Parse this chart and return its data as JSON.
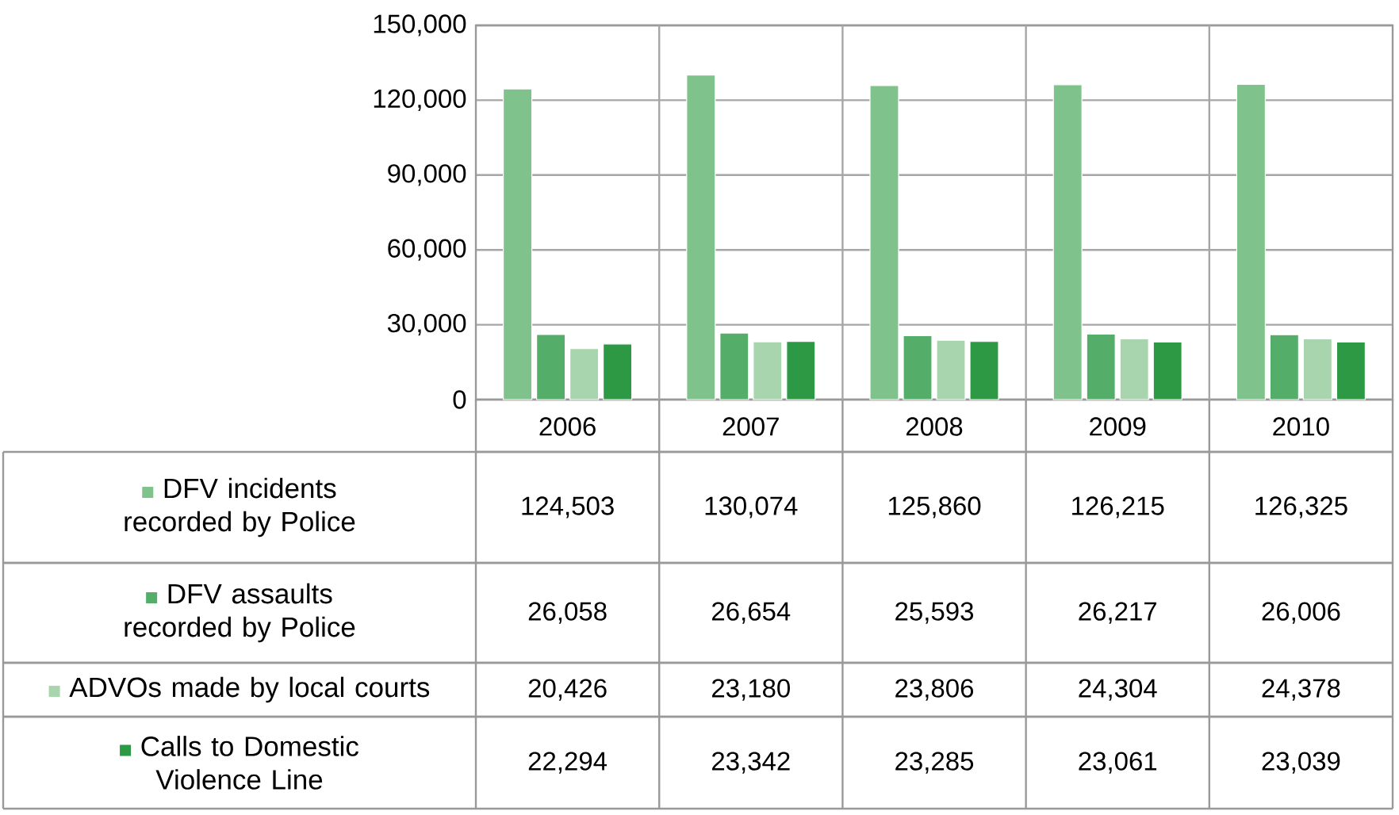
{
  "chart_data": {
    "type": "bar",
    "categories": [
      "2006",
      "2007",
      "2008",
      "2009",
      "2010"
    ],
    "series": [
      {
        "name": "DFV incidents recorded by Police",
        "color": "#80c28c",
        "values": [
          124503,
          130074,
          125860,
          126215,
          126325
        ],
        "value_labels": [
          "124,503",
          "130,074",
          "125,860",
          "126,215",
          "126,325"
        ]
      },
      {
        "name": "DFV assaults recorded by Police",
        "color": "#55ad6a",
        "values": [
          26058,
          26654,
          25593,
          26217,
          26006
        ],
        "value_labels": [
          "26,058",
          "26,654",
          "25,593",
          "26,217",
          "26,006"
        ]
      },
      {
        "name": "ADVOs made by local courts",
        "color": "#a8d5ae",
        "values": [
          20426,
          23180,
          23806,
          24304,
          24378
        ],
        "value_labels": [
          "20,426",
          "23,180",
          "23,806",
          "24,304",
          "24,378"
        ]
      },
      {
        "name": "Calls to Domestic Violence Line",
        "color": "#2e9945",
        "values": [
          22294,
          23342,
          23285,
          23061,
          23039
        ],
        "value_labels": [
          "22,294",
          "23,342",
          "23,285",
          "23,061",
          "23,039"
        ]
      }
    ],
    "ylim": [
      0,
      150000
    ],
    "yticks": [
      0,
      {
        "value": 30000,
        "label": "30,000"
      },
      {
        "value": 60000,
        "label": "60,000"
      },
      {
        "value": 90000,
        "label": "90,000"
      },
      {
        "value": 120000,
        "label": "120,000"
      },
      {
        "value": 150000,
        "label": "150,000"
      }
    ],
    "grid": "y",
    "legend": "bottom left"
  }
}
